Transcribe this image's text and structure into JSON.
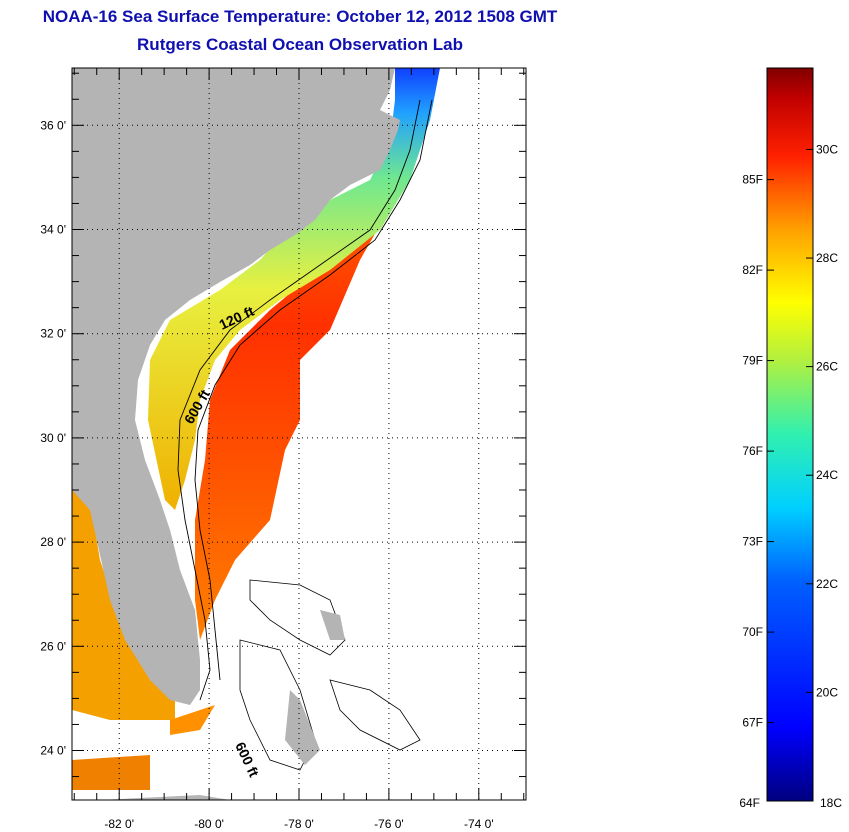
{
  "title_line1": "NOAA-16 Sea Surface Temperature:  October 12, 2012 1508 GMT",
  "title_line2": "Rutgers Coastal Ocean Observation Lab",
  "map": {
    "lon_ticks": [
      -82,
      -80,
      -78,
      -76,
      -74
    ],
    "lat_ticks": [
      36,
      34,
      32,
      30,
      28,
      26,
      24
    ],
    "lon_tick_labels": [
      "-82 0'",
      "-80 0'",
      "-78 0'",
      "-76 0'",
      "-74 0'"
    ],
    "lat_tick_labels": [
      "36 0'",
      "34 0'",
      "32 0'",
      "30 0'",
      "28 0'",
      "26 0'",
      "24 0'"
    ],
    "contour_labels": [
      "120 ft",
      "600 ft",
      "600 ft"
    ],
    "land_color": "#b4b4b4"
  },
  "colorbar": {
    "fahrenheit_labels": [
      "85F",
      "82F",
      "79F",
      "76F",
      "73F",
      "70F",
      "67F",
      "64F"
    ],
    "celsius_labels": [
      "30C",
      "28C",
      "26C",
      "24C",
      "22C",
      "20C",
      "18C"
    ],
    "range_c": [
      18,
      31.5
    ]
  }
}
